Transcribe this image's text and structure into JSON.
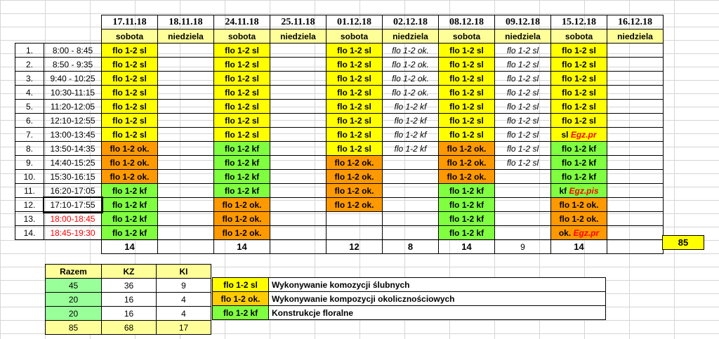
{
  "dates": [
    "17.11.18",
    "18.11.18",
    "24.11.18",
    "25.11.18",
    "01.12.18",
    "02.12.18",
    "08.12.18",
    "09.12.18",
    "15.12.18",
    "16.12.18"
  ],
  "days": [
    "sobota",
    "niedziela",
    "sobota",
    "niedziela",
    "sobota",
    "niedziela",
    "sobota",
    "niedziela",
    "sobota",
    "niedziela"
  ],
  "rows": [
    {
      "num": "1.",
      "time": "8:00 - 8:45",
      "cells": [
        "flo 1-2 sl",
        "",
        "flo 1-2 sl",
        "",
        "flo 1-2 sl",
        "flo 1-2 ok.",
        "flo 1-2 sl",
        "flo 1-2 sl",
        "flo 1-2 sl",
        ""
      ]
    },
    {
      "num": "2.",
      "time": "8:50 - 9:35",
      "cells": [
        "flo 1-2 sl",
        "",
        "flo 1-2 sl",
        "",
        "flo 1-2 sl",
        "flo 1-2 ok.",
        "flo 1-2 sl",
        "flo 1-2 sl",
        "flo 1-2 sl",
        ""
      ]
    },
    {
      "num": "3.",
      "time": "9:40 - 10:25",
      "cells": [
        "flo 1-2 sl",
        "",
        "flo 1-2 sl",
        "",
        "flo 1-2 sl",
        "flo 1-2 ok.",
        "flo 1-2 sl",
        "flo 1-2 sl",
        "flo 1-2 sl",
        ""
      ]
    },
    {
      "num": "4.",
      "time": "10:30-11:15",
      "cells": [
        "flo 1-2 sl",
        "",
        "flo 1-2 sl",
        "",
        "flo 1-2 sl",
        "flo 1-2 ok.",
        "flo 1-2 sl",
        "flo 1-2 sl",
        "flo 1-2 sl",
        ""
      ]
    },
    {
      "num": "5.",
      "time": "11:20-12:05",
      "cells": [
        "flo 1-2 sl",
        "",
        "flo 1-2 sl",
        "",
        "flo 1-2 sl",
        "flo 1-2 kf",
        "flo 1-2 sl",
        "flo 1-2 sl",
        "flo 1-2 sl",
        ""
      ]
    },
    {
      "num": "6.",
      "time": "12:10-12:55",
      "cells": [
        "flo 1-2 sl",
        "",
        "flo 1-2 sl",
        "",
        "flo 1-2 sl",
        "flo 1-2 kf",
        "flo 1-2 sl",
        "flo 1-2 sl",
        "flo 1-2 sl",
        ""
      ]
    },
    {
      "num": "7.",
      "time": "13:00-13:45",
      "cells": [
        "flo 1-2 sl",
        "",
        "flo 1-2 sl",
        "",
        "flo 1-2 sl",
        "flo 1-2 kf",
        "flo 1-2 sl",
        "flo 1-2 sl",
        "sl |Egz.pr",
        ""
      ]
    },
    {
      "num": "8.",
      "time": "13:50-14:35",
      "cells": [
        "flo 1-2 ok.",
        "",
        "flo 1-2 kf",
        "",
        "flo 1-2 sl",
        "flo 1-2 kf",
        "flo 1-2 ok.",
        "flo 1-2 sl",
        "flo 1-2 kf",
        ""
      ]
    },
    {
      "num": "9.",
      "time": "14:40-15:25",
      "cells": [
        "flo 1-2 ok.",
        "",
        "flo 1-2 kf",
        "",
        "flo 1-2 ok.",
        "",
        "flo 1-2 ok.",
        "flo 1-2 sl",
        "flo 1-2 kf",
        ""
      ]
    },
    {
      "num": "10.",
      "time": "15:30-16:15",
      "cells": [
        "flo 1-2 ok.",
        "",
        "flo 1-2 kf",
        "",
        "flo 1-2 ok.",
        "",
        "flo 1-2 ok.",
        "",
        "flo 1-2 kf",
        ""
      ]
    },
    {
      "num": "11.",
      "time": "16:20-17:05",
      "cells": [
        "flo 1-2 kf",
        "",
        "flo 1-2 kf",
        "",
        "flo 1-2 ok.",
        "",
        "flo 1-2 kf",
        "",
        "kf |Egz.pis",
        ""
      ]
    },
    {
      "num": "12.",
      "time": "17:10-17:55",
      "cells": [
        "flo 1-2 kf",
        "",
        "flo 1-2 ok.",
        "",
        "flo 1-2 ok.",
        "",
        "flo 1-2 kf",
        "",
        "flo 1-2 ok.",
        ""
      ]
    },
    {
      "num": "13.",
      "time": "18:00-18:45",
      "cells": [
        "flo 1-2 kf",
        "",
        "flo 1-2 ok.",
        "",
        "",
        "",
        "flo 1-2 kf",
        "",
        "flo 1-2 ok.",
        ""
      ]
    },
    {
      "num": "14.",
      "time": "18:45-19:30",
      "cells": [
        "flo 1-2 kf",
        "",
        "flo 1-2 ok.",
        "",
        "",
        "",
        "flo 1-2 kf",
        "",
        "ok. |Egz.pr",
        ""
      ]
    }
  ],
  "totals": [
    "14",
    "",
    "14",
    "",
    "12",
    "8",
    "14",
    "9",
    "14",
    ""
  ],
  "grand_total": "85",
  "summary": {
    "headers": [
      "Razem",
      "KZ",
      "KI"
    ],
    "rows": [
      {
        "razem": "45",
        "kz": "36",
        "ki": "9",
        "code": "flo 1-2 sl",
        "desc": "Wykonywanie komozycji ślubnych"
      },
      {
        "razem": "20",
        "kz": "16",
        "ki": "4",
        "code": "flo 1-2 ok.",
        "desc": "Wykonywanie kompozycji okolicznościowych"
      },
      {
        "razem": "20",
        "kz": "16",
        "ki": "4",
        "code": "flo 1-2 kf",
        "desc": "Konstrukcje floralne"
      }
    ],
    "total": {
      "razem": "85",
      "kz": "68",
      "ki": "17"
    }
  },
  "colors": {
    "sl": "#ffff00",
    "ok": "#ffcc00",
    "okdark": "#ff9900",
    "kf": "#80ff40",
    "header": "#ffff99"
  }
}
